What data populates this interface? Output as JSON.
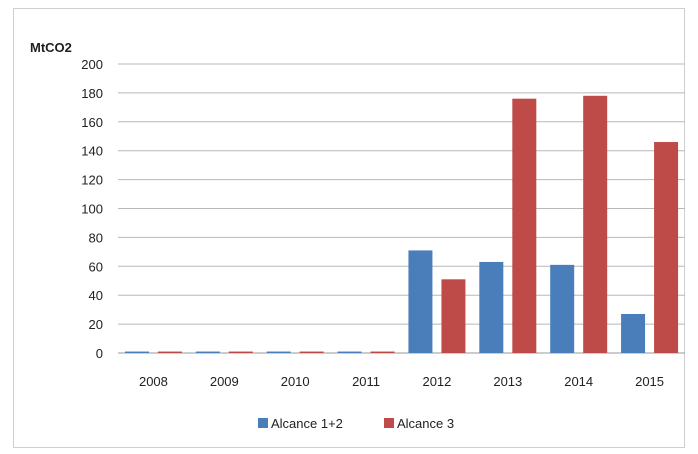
{
  "chart_data": {
    "type": "bar",
    "title": "",
    "xlabel": "",
    "ylabel": "MtCO2",
    "ylim": [
      0,
      200
    ],
    "yticks": [
      0,
      20,
      40,
      60,
      80,
      100,
      120,
      140,
      160,
      180,
      200
    ],
    "categories": [
      "2008",
      "2009",
      "2010",
      "2011",
      "2012",
      "2013",
      "2014",
      "2015"
    ],
    "series": [
      {
        "name": "Alcance 1+2",
        "color": "#4a7ebb",
        "values": [
          1,
          1,
          1,
          1,
          71,
          63,
          61,
          27
        ]
      },
      {
        "name": "Alcance 3",
        "color": "#be4b48",
        "values": [
          1,
          1,
          1,
          1,
          51,
          176,
          178,
          146
        ]
      }
    ],
    "grid": true,
    "legend": "bottom"
  }
}
